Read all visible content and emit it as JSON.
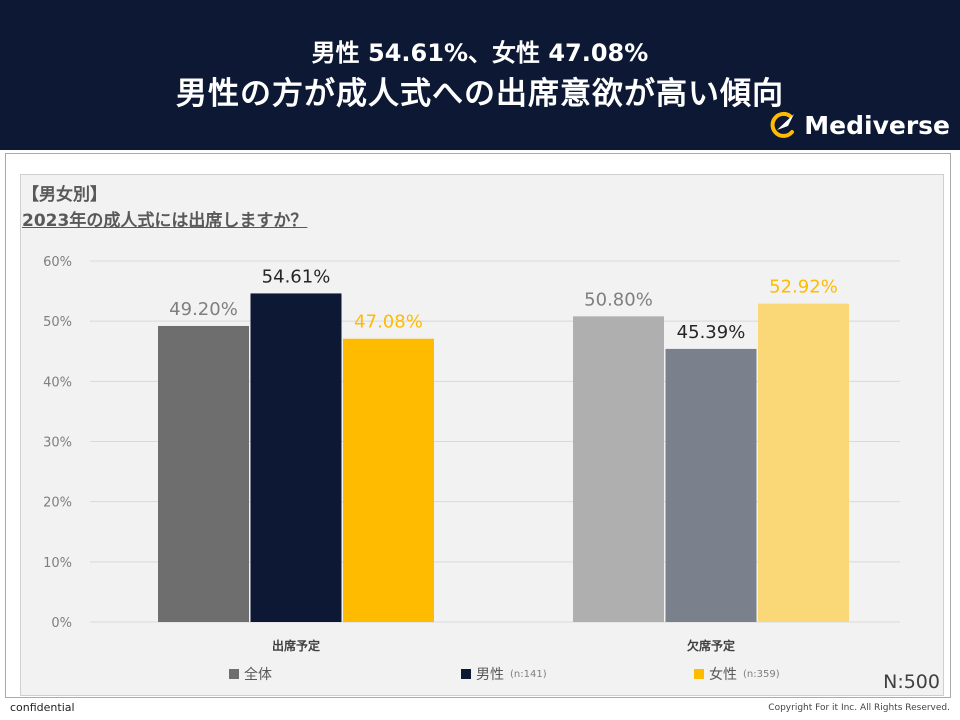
{
  "header": {
    "title_line1": "男性 54.61%、女性 47.08%",
    "title_line2": "男性の方が成人式への出席意欲が高い傾向",
    "logo_text": "Mediverse"
  },
  "subtitle": {
    "group": "【男女別】",
    "question": "2023年の成人式には出席しますか？"
  },
  "chart_data": {
    "type": "bar",
    "title": "2023年の成人式には出席しますか？",
    "categories": [
      "出席予定",
      "欠席予定"
    ],
    "yticks": [
      "0%",
      "10%",
      "20%",
      "30%",
      "40%",
      "50%",
      "60%"
    ],
    "ylim": [
      0,
      60
    ],
    "xlabel": "",
    "ylabel": "",
    "series": [
      {
        "name": "全体",
        "note": "",
        "values": [
          49.2,
          50.8
        ],
        "labels": [
          "49.20%",
          "50.80%"
        ],
        "colors": [
          "#6e6e6e",
          "#afafaf"
        ],
        "label_colors": [
          "#7f7f7f",
          "#7f7f7f"
        ]
      },
      {
        "name": "男性",
        "note": "(n:141)",
        "values": [
          54.61,
          45.39
        ],
        "labels": [
          "54.61%",
          "45.39%"
        ],
        "colors": [
          "#0c1834",
          "#7b818c"
        ],
        "label_colors": [
          "#262626",
          "#262626"
        ]
      },
      {
        "name": "女性",
        "note": "(n:359)",
        "values": [
          47.08,
          52.92
        ],
        "labels": [
          "47.08%",
          "52.92%"
        ],
        "colors": [
          "#ffbb00",
          "#fad878"
        ],
        "label_colors": [
          "#ffbb00",
          "#ffbb00"
        ]
      }
    ],
    "legend_colors": [
      "#6e6e6e",
      "#0c1834",
      "#ffbb00"
    ]
  },
  "sample_size": "N:500",
  "footer": {
    "left": "confidential",
    "right": "Copyright For it Inc. All Rights Reserved."
  }
}
